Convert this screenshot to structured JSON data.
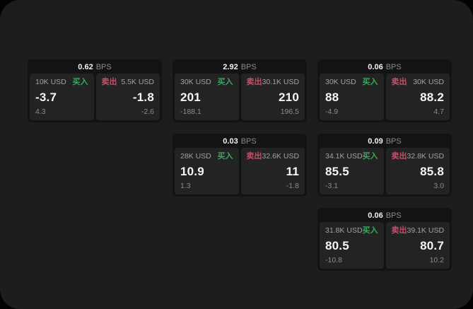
{
  "labels": {
    "buy": "买入",
    "sell": "卖出",
    "bps_unit": "BPS"
  },
  "colors": {
    "page-bg": "#1d1d1d",
    "card-bg": "#131313",
    "panel-bg": "#232323",
    "buy-green": "#3da55f",
    "sell-red": "#c6506a"
  },
  "cards": [
    {
      "col": 1,
      "row": 1,
      "bps": "0.62",
      "buy": {
        "amount": "10K USD",
        "value": "-3.7",
        "change": "4.3"
      },
      "sell": {
        "amount": "5.5K USD",
        "value": "-1.8",
        "change": "-2.6"
      }
    },
    {
      "col": 2,
      "row": 1,
      "bps": "2.92",
      "buy": {
        "amount": "30K USD",
        "value": "201",
        "change": "-188.1"
      },
      "sell": {
        "amount": "30.1K USD",
        "value": "210",
        "change": "196.5"
      }
    },
    {
      "col": 3,
      "row": 1,
      "bps": "0.06",
      "buy": {
        "amount": "30K USD",
        "value": "88",
        "change": "-4.9"
      },
      "sell": {
        "amount": "30K USD",
        "value": "88.2",
        "change": "4.7"
      }
    },
    {
      "col": 2,
      "row": 2,
      "bps": "0.03",
      "buy": {
        "amount": "28K USD",
        "value": "10.9",
        "change": "1.3"
      },
      "sell": {
        "amount": "32.6K USD",
        "value": "11",
        "change": "-1.8"
      }
    },
    {
      "col": 3,
      "row": 2,
      "bps": "0.09",
      "buy": {
        "amount": "34.1K USD",
        "value": "85.5",
        "change": "-3.1"
      },
      "sell": {
        "amount": "32.8K USD",
        "value": "85.8",
        "change": "3.0"
      }
    },
    {
      "col": 3,
      "row": 3,
      "bps": "0.06",
      "buy": {
        "amount": "31.8K USD",
        "value": "80.5",
        "change": "-10.8"
      },
      "sell": {
        "amount": "39.1K USD",
        "value": "80.7",
        "change": "10.2"
      }
    }
  ]
}
